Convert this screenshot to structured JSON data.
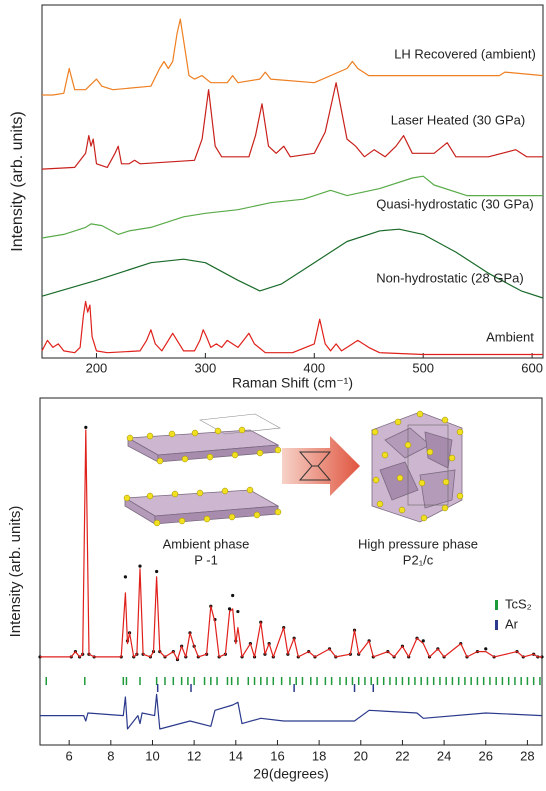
{
  "chart_data": [
    {
      "type": "line",
      "xlabel": "Raman Shift (cm⁻¹)",
      "ylabel": "Intensity (arb. units)",
      "xlim": [
        150,
        610
      ],
      "xticks": [
        200,
        300,
        400,
        500,
        600
      ],
      "ylim": [
        0,
        100
      ],
      "series": [
        {
          "name": "LH Recovered (ambient)",
          "color": "#ee7f22",
          "x": [
            150,
            160,
            170,
            175,
            180,
            190,
            200,
            205,
            215,
            250,
            258,
            262,
            266,
            270,
            274,
            277,
            280,
            285,
            290,
            297,
            305,
            320,
            325,
            330,
            350,
            355,
            360,
            400,
            430,
            435,
            440,
            450,
            480,
            540,
            570,
            575,
            610
          ],
          "values": [
            74.5,
            74.5,
            75,
            82,
            76,
            76,
            79,
            77,
            76,
            77,
            82,
            84,
            82,
            84,
            92,
            96,
            90,
            80,
            79,
            80,
            78,
            78,
            80,
            78,
            79,
            81,
            79,
            78,
            82,
            84,
            82,
            80,
            80,
            80,
            80,
            81,
            80
          ]
        },
        {
          "name": "Laser Heated (30 GPa)",
          "color": "#c8201b",
          "x": [
            150,
            180,
            190,
            193,
            195,
            197,
            200,
            210,
            217,
            220,
            223,
            230,
            235,
            240,
            290,
            297,
            303,
            309,
            315,
            340,
            346,
            352,
            358,
            365,
            372,
            378,
            400,
            410,
            420,
            430,
            438,
            446,
            455,
            465,
            475,
            482,
            490,
            510,
            522,
            530,
            560,
            585,
            595,
            610
          ],
          "values": [
            53.5,
            54,
            58,
            63,
            60,
            62,
            55,
            54,
            58,
            60,
            55,
            55,
            56,
            55,
            56,
            62,
            76,
            60,
            57,
            57,
            63,
            72,
            60,
            58,
            60,
            57,
            58,
            64,
            78,
            62,
            60,
            57,
            59,
            57,
            60,
            63,
            58,
            58,
            61,
            57,
            57,
            59,
            57,
            57
          ]
        },
        {
          "name": "Quasi-hydrostatic (30 GPa)",
          "color": "#5aab4a",
          "x": [
            150,
            170,
            190,
            195,
            205,
            220,
            230,
            250,
            280,
            300,
            330,
            360,
            390,
            415,
            430,
            460,
            490,
            500,
            510,
            540,
            570,
            610
          ],
          "values": [
            34,
            35,
            37,
            38,
            37.5,
            35,
            36,
            37,
            40,
            41,
            42,
            44,
            45,
            47.5,
            46,
            48,
            51,
            51.5,
            49,
            46,
            46,
            46
          ]
        },
        {
          "name": "Non-hydrostatic  (28 GPa)",
          "color": "#1a6b2a",
          "x": [
            150,
            200,
            250,
            280,
            300,
            330,
            350,
            370,
            400,
            430,
            460,
            478,
            500,
            530,
            560,
            590,
            610
          ],
          "values": [
            17.5,
            22,
            27,
            28,
            27,
            22,
            19,
            21,
            27,
            33,
            36,
            36.5,
            35,
            30,
            24,
            19,
            17
          ]
        },
        {
          "name": "Ambient",
          "color": "#e0201b",
          "x": [
            150,
            155,
            160,
            165,
            170,
            180,
            185,
            188,
            190,
            192,
            194,
            196,
            200,
            210,
            240,
            246,
            250,
            254,
            260,
            266,
            270,
            274,
            280,
            290,
            295,
            298,
            301,
            305,
            310,
            315,
            320,
            325,
            330,
            335,
            340,
            345,
            355,
            380,
            400,
            405,
            410,
            415,
            420,
            425,
            430,
            440,
            450,
            460,
            500,
            550,
            610
          ],
          "values": [
            2,
            5,
            3,
            4,
            2,
            1.5,
            3,
            12,
            16,
            13,
            15,
            6,
            2,
            1.5,
            2,
            5,
            8,
            4,
            2,
            5,
            7,
            5,
            2,
            2,
            5,
            8,
            6,
            3,
            4,
            3,
            5,
            4,
            3,
            5,
            7,
            4,
            1.5,
            1.5,
            4,
            11,
            4,
            2,
            4,
            2,
            3,
            5,
            3,
            1.5,
            1,
            1,
            1
          ]
        }
      ]
    },
    {
      "type": "line",
      "xlabel": "2θ(degrees)",
      "ylabel": "Intensity (arb. units)",
      "xlim": [
        4.6,
        28.7
      ],
      "xticks": [
        6,
        8,
        10,
        12,
        14,
        16,
        18,
        20,
        22,
        24,
        26,
        28
      ],
      "ylim": [
        -30,
        100
      ],
      "annotations": [
        "Ambient phase",
        "P -1",
        "High pressure phase",
        "P2₁/c"
      ],
      "series": [
        {
          "marker": "dot",
          "color": "#111111",
          "x": [
            4.6,
            6.1,
            6.3,
            6.5,
            6.65,
            6.8,
            6.95,
            7.2,
            8.5,
            8.7,
            8.8,
            8.9,
            9.1,
            9.25,
            9.4,
            9.55,
            9.9,
            10.05,
            10.2,
            10.35,
            10.6,
            11.0,
            11.2,
            11.4,
            11.6,
            11.8,
            12.0,
            12.2,
            12.6,
            12.8,
            13.0,
            13.2,
            13.5,
            13.7,
            13.85,
            14.0,
            14.1,
            14.3,
            14.7,
            14.9,
            15.2,
            15.4,
            15.6,
            15.8,
            16.3,
            16.5,
            16.8,
            17.0,
            17.5,
            17.8,
            18.5,
            18.8,
            19.5,
            19.7,
            19.9,
            20.4,
            20.6,
            21.3,
            21.6,
            22.0,
            22.3,
            22.7,
            23.0,
            23.3,
            23.7,
            24.0,
            24.8,
            25.1,
            25.6,
            26.0,
            26.4,
            27.5,
            27.8,
            28.3,
            28.5,
            28.7
          ],
          "values": [
            3,
            3,
            5,
            3,
            4,
            89,
            4,
            3,
            3,
            33,
            9,
            12,
            3,
            4,
            37,
            4,
            3,
            5,
            35,
            5,
            3,
            5,
            2,
            7,
            3,
            12,
            7,
            3,
            4,
            22,
            17,
            3,
            4,
            21,
            26,
            9,
            20,
            3,
            8,
            3,
            16,
            4,
            8,
            3,
            14,
            4,
            10,
            3,
            5,
            3,
            6,
            3,
            4,
            13,
            4,
            9,
            3,
            5,
            3,
            7,
            3,
            10,
            9,
            3,
            6,
            3,
            8,
            3,
            5,
            6,
            3,
            5,
            3,
            4,
            3,
            3
          ]
        },
        {
          "marker": "line",
          "color": "#e0201b",
          "x": [
            4.6,
            6.1,
            6.3,
            6.5,
            6.65,
            6.8,
            6.95,
            7.2,
            8.5,
            8.7,
            8.8,
            8.9,
            9.1,
            9.25,
            9.4,
            9.55,
            9.9,
            10.05,
            10.2,
            10.35,
            10.6,
            11.0,
            11.2,
            11.4,
            11.6,
            11.8,
            12.0,
            12.2,
            12.6,
            12.8,
            13.0,
            13.2,
            13.5,
            13.7,
            13.85,
            14.0,
            14.1,
            14.3,
            14.7,
            14.9,
            15.2,
            15.4,
            15.6,
            15.8,
            16.3,
            16.5,
            16.8,
            17.0,
            17.5,
            17.8,
            18.5,
            18.8,
            19.5,
            19.7,
            19.9,
            20.4,
            20.6,
            21.3,
            21.6,
            22.0,
            22.3,
            22.7,
            23.0,
            23.3,
            23.7,
            24.0,
            24.8,
            25.1,
            25.6,
            26.0,
            26.4,
            27.5,
            27.8,
            28.3,
            28.5,
            28.7
          ],
          "values": [
            3,
            3,
            5,
            3,
            4,
            88,
            4,
            3,
            3,
            27,
            8,
            12,
            3,
            4,
            36,
            4,
            3,
            5,
            33,
            5,
            3,
            5,
            2,
            7,
            3,
            12,
            7,
            3,
            4,
            22,
            16,
            3,
            4,
            20,
            21,
            8,
            14,
            3,
            8,
            3,
            16,
            4,
            8,
            3,
            14,
            4,
            10,
            3,
            5,
            3,
            6,
            3,
            4,
            13,
            4,
            9,
            3,
            5,
            3,
            7,
            3,
            10,
            8,
            3,
            6,
            3,
            8,
            3,
            5,
            5,
            3,
            5,
            3,
            4,
            3,
            3
          ]
        },
        {
          "marker": "line",
          "color": "#2b3a8c",
          "x": [
            4.6,
            6.7,
            6.8,
            6.9,
            8.6,
            8.7,
            8.8,
            9.3,
            9.4,
            9.5,
            10.1,
            10.2,
            10.35,
            11.8,
            12.8,
            13.0,
            13.85,
            14.1,
            14.3,
            15.2,
            16.3,
            19.7,
            20.4,
            22.7,
            23.0,
            26.0,
            28.7
          ],
          "values": [
            -19,
            -19,
            -21,
            -18,
            -19,
            -12,
            -24,
            -19,
            -22,
            -18,
            -19,
            -11,
            -24,
            -21,
            -23,
            -17,
            -15,
            -14,
            -22,
            -20,
            -21,
            -21,
            -17,
            -18,
            -20,
            -18,
            -19
          ]
        },
        {
          "name": "TcS₂",
          "marker": "tick",
          "color": "#1f9a3a",
          "x": [
            4.9,
            6.75,
            8.6,
            8.75,
            9.4,
            10.2,
            10.6,
            11.0,
            11.4,
            11.7,
            12.0,
            12.5,
            12.8,
            13.1,
            13.6,
            13.8,
            14.1,
            14.6,
            14.9,
            15.2,
            15.5,
            15.8,
            16.2,
            16.6,
            16.9,
            17.2,
            17.6,
            17.9,
            18.3,
            18.6,
            19.0,
            19.3,
            19.6,
            19.9,
            20.2,
            20.5,
            20.8,
            21.1,
            21.4,
            21.7,
            22.0,
            22.3,
            22.6,
            22.9,
            23.2,
            23.5,
            23.8,
            24.1,
            24.4,
            24.7,
            25.0,
            25.3,
            25.6,
            25.9,
            26.2,
            26.5,
            26.8,
            27.1,
            27.4,
            27.7,
            28.0,
            28.3,
            28.6
          ]
        },
        {
          "name": "Ar",
          "marker": "tick",
          "color": "#2b3a8c",
          "x": [
            10.25,
            11.85,
            16.8,
            19.7,
            20.6
          ]
        }
      ]
    }
  ]
}
